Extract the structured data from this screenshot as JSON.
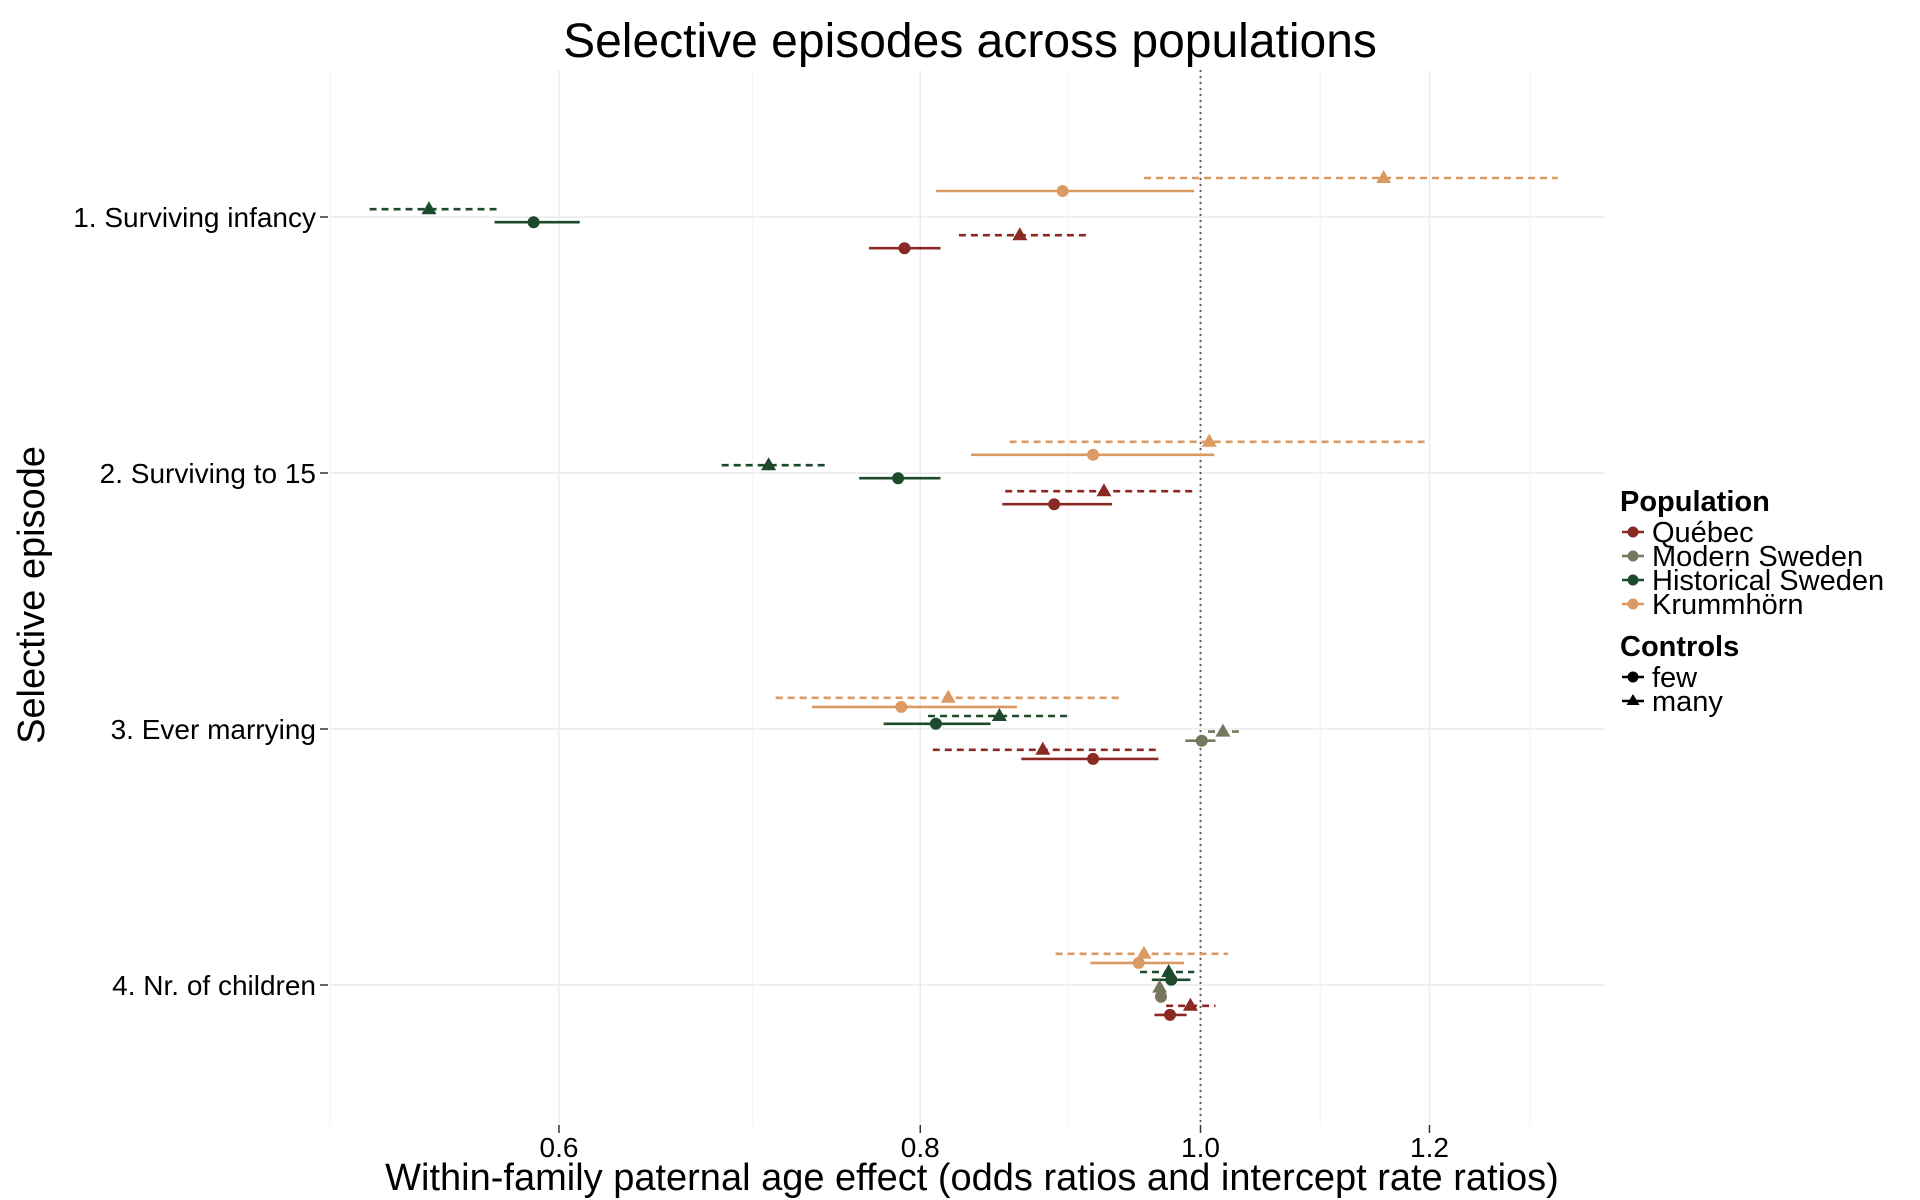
{
  "chart_data": {
    "type": "forest",
    "title": "Selective episodes across populations",
    "xlabel": "Within-family paternal age effect (odds ratios and intercept rate ratios)",
    "ylabel": "Selective episode",
    "x_scale": "log",
    "xlim": [
      0.5,
      1.38
    ],
    "x_ticks": [
      {
        "value": 0.6,
        "label": "0.6"
      },
      {
        "value": 0.8,
        "label": "0.8"
      },
      {
        "value": 1.0,
        "label": "1.0"
      },
      {
        "value": 1.2,
        "label": "1.2"
      }
    ],
    "reference_line": 1.0,
    "grid": true,
    "legend_position": "right",
    "categories": [
      "1. Surviving infancy",
      "2. Surviving to 15",
      "3. Ever marrying",
      "4. Nr. of children"
    ],
    "legends": {
      "population": {
        "title": "Population",
        "items": [
          {
            "label": "Québec",
            "color": "#8b2a24"
          },
          {
            "label": "Modern Sweden",
            "color": "#777760"
          },
          {
            "label": "Historical Sweden",
            "color": "#1d4a2c"
          },
          {
            "label": "Krummhörn",
            "color": "#dc9a63"
          }
        ]
      },
      "controls": {
        "title": "Controls",
        "items": [
          {
            "label": "few",
            "shape": "circle",
            "line": "solid"
          },
          {
            "label": "many",
            "shape": "triangle",
            "line": "dashed"
          }
        ]
      }
    },
    "estimates": [
      {
        "episode": 0,
        "population": "Krummhörn",
        "controls": "many",
        "estimate": 1.157,
        "lower": 0.956,
        "upper": 1.329,
        "offset": -1.5
      },
      {
        "episode": 0,
        "population": "Krummhörn",
        "controls": "few",
        "estimate": 0.896,
        "lower": 0.81,
        "upper": 0.995,
        "offset": -1.0
      },
      {
        "episode": 0,
        "population": "Historical Sweden",
        "controls": "many",
        "estimate": 0.541,
        "lower": 0.516,
        "upper": 0.572,
        "offset": -0.3
      },
      {
        "episode": 0,
        "population": "Historical Sweden",
        "controls": "few",
        "estimate": 0.588,
        "lower": 0.57,
        "upper": 0.61,
        "offset": 0.2
      },
      {
        "episode": 0,
        "population": "Québec",
        "controls": "many",
        "estimate": 0.866,
        "lower": 0.825,
        "upper": 0.913,
        "offset": 0.7
      },
      {
        "episode": 0,
        "population": "Québec",
        "controls": "few",
        "estimate": 0.79,
        "lower": 0.768,
        "upper": 0.813,
        "offset": 1.2
      },
      {
        "episode": 1,
        "population": "Krummhörn",
        "controls": "many",
        "estimate": 1.007,
        "lower": 0.859,
        "upper": 1.2,
        "offset": -1.2
      },
      {
        "episode": 1,
        "population": "Krummhörn",
        "controls": "few",
        "estimate": 0.918,
        "lower": 0.833,
        "upper": 1.011,
        "offset": -0.7
      },
      {
        "episode": 1,
        "population": "Historical Sweden",
        "controls": "many",
        "estimate": 0.709,
        "lower": 0.683,
        "upper": 0.742,
        "offset": -0.3
      },
      {
        "episode": 1,
        "population": "Historical Sweden",
        "controls": "few",
        "estimate": 0.786,
        "lower": 0.762,
        "upper": 0.813,
        "offset": 0.2
      },
      {
        "episode": 1,
        "population": "Québec",
        "controls": "many",
        "estimate": 0.926,
        "lower": 0.856,
        "upper": 0.997,
        "offset": 0.7
      },
      {
        "episode": 1,
        "population": "Québec",
        "controls": "few",
        "estimate": 0.89,
        "lower": 0.854,
        "upper": 0.932,
        "offset": 1.2
      },
      {
        "episode": 2,
        "population": "Krummhörn",
        "controls": "many",
        "estimate": 0.818,
        "lower": 0.713,
        "upper": 0.94,
        "offset": -1.2
      },
      {
        "episode": 2,
        "population": "Krummhörn",
        "controls": "few",
        "estimate": 0.788,
        "lower": 0.734,
        "upper": 0.864,
        "offset": -0.85
      },
      {
        "episode": 2,
        "population": "Historical Sweden",
        "controls": "many",
        "estimate": 0.852,
        "lower": 0.805,
        "upper": 0.902,
        "offset": -0.5
      },
      {
        "episode": 2,
        "population": "Historical Sweden",
        "controls": "few",
        "estimate": 0.81,
        "lower": 0.777,
        "upper": 0.846,
        "offset": -0.2
      },
      {
        "episode": 2,
        "population": "Modern Sweden",
        "controls": "many",
        "estimate": 1.018,
        "lower": 1.006,
        "upper": 1.031,
        "offset": 0.1
      },
      {
        "episode": 2,
        "population": "Modern Sweden",
        "controls": "few",
        "estimate": 1.001,
        "lower": 0.988,
        "upper": 1.012,
        "offset": 0.45
      },
      {
        "episode": 2,
        "population": "Québec",
        "controls": "many",
        "estimate": 0.882,
        "lower": 0.808,
        "upper": 0.967,
        "offset": 0.8
      },
      {
        "episode": 2,
        "population": "Québec",
        "controls": "few",
        "estimate": 0.918,
        "lower": 0.867,
        "upper": 0.967,
        "offset": 1.15
      },
      {
        "episode": 3,
        "population": "Krummhörn",
        "controls": "many",
        "estimate": 0.956,
        "lower": 0.891,
        "upper": 1.022,
        "offset": -1.2
      },
      {
        "episode": 3,
        "population": "Krummhörn",
        "controls": "few",
        "estimate": 0.952,
        "lower": 0.916,
        "upper": 0.987,
        "offset": -0.85
      },
      {
        "episode": 3,
        "population": "Historical Sweden",
        "controls": "many",
        "estimate": 0.975,
        "lower": 0.953,
        "upper": 0.995,
        "offset": -0.5
      },
      {
        "episode": 3,
        "population": "Historical Sweden",
        "controls": "few",
        "estimate": 0.977,
        "lower": 0.962,
        "upper": 0.992,
        "offset": -0.2
      },
      {
        "episode": 3,
        "population": "Modern Sweden",
        "controls": "many",
        "estimate": 0.968,
        "lower": 0.965,
        "upper": 0.972,
        "offset": 0.1
      },
      {
        "episode": 3,
        "population": "Modern Sweden",
        "controls": "few",
        "estimate": 0.969,
        "lower": 0.966,
        "upper": 0.972,
        "offset": 0.45
      },
      {
        "episode": 3,
        "population": "Québec",
        "controls": "many",
        "estimate": 0.992,
        "lower": 0.973,
        "upper": 1.012,
        "offset": 0.8
      },
      {
        "episode": 3,
        "population": "Québec",
        "controls": "few",
        "estimate": 0.976,
        "lower": 0.964,
        "upper": 0.989,
        "offset": 1.15
      }
    ]
  }
}
